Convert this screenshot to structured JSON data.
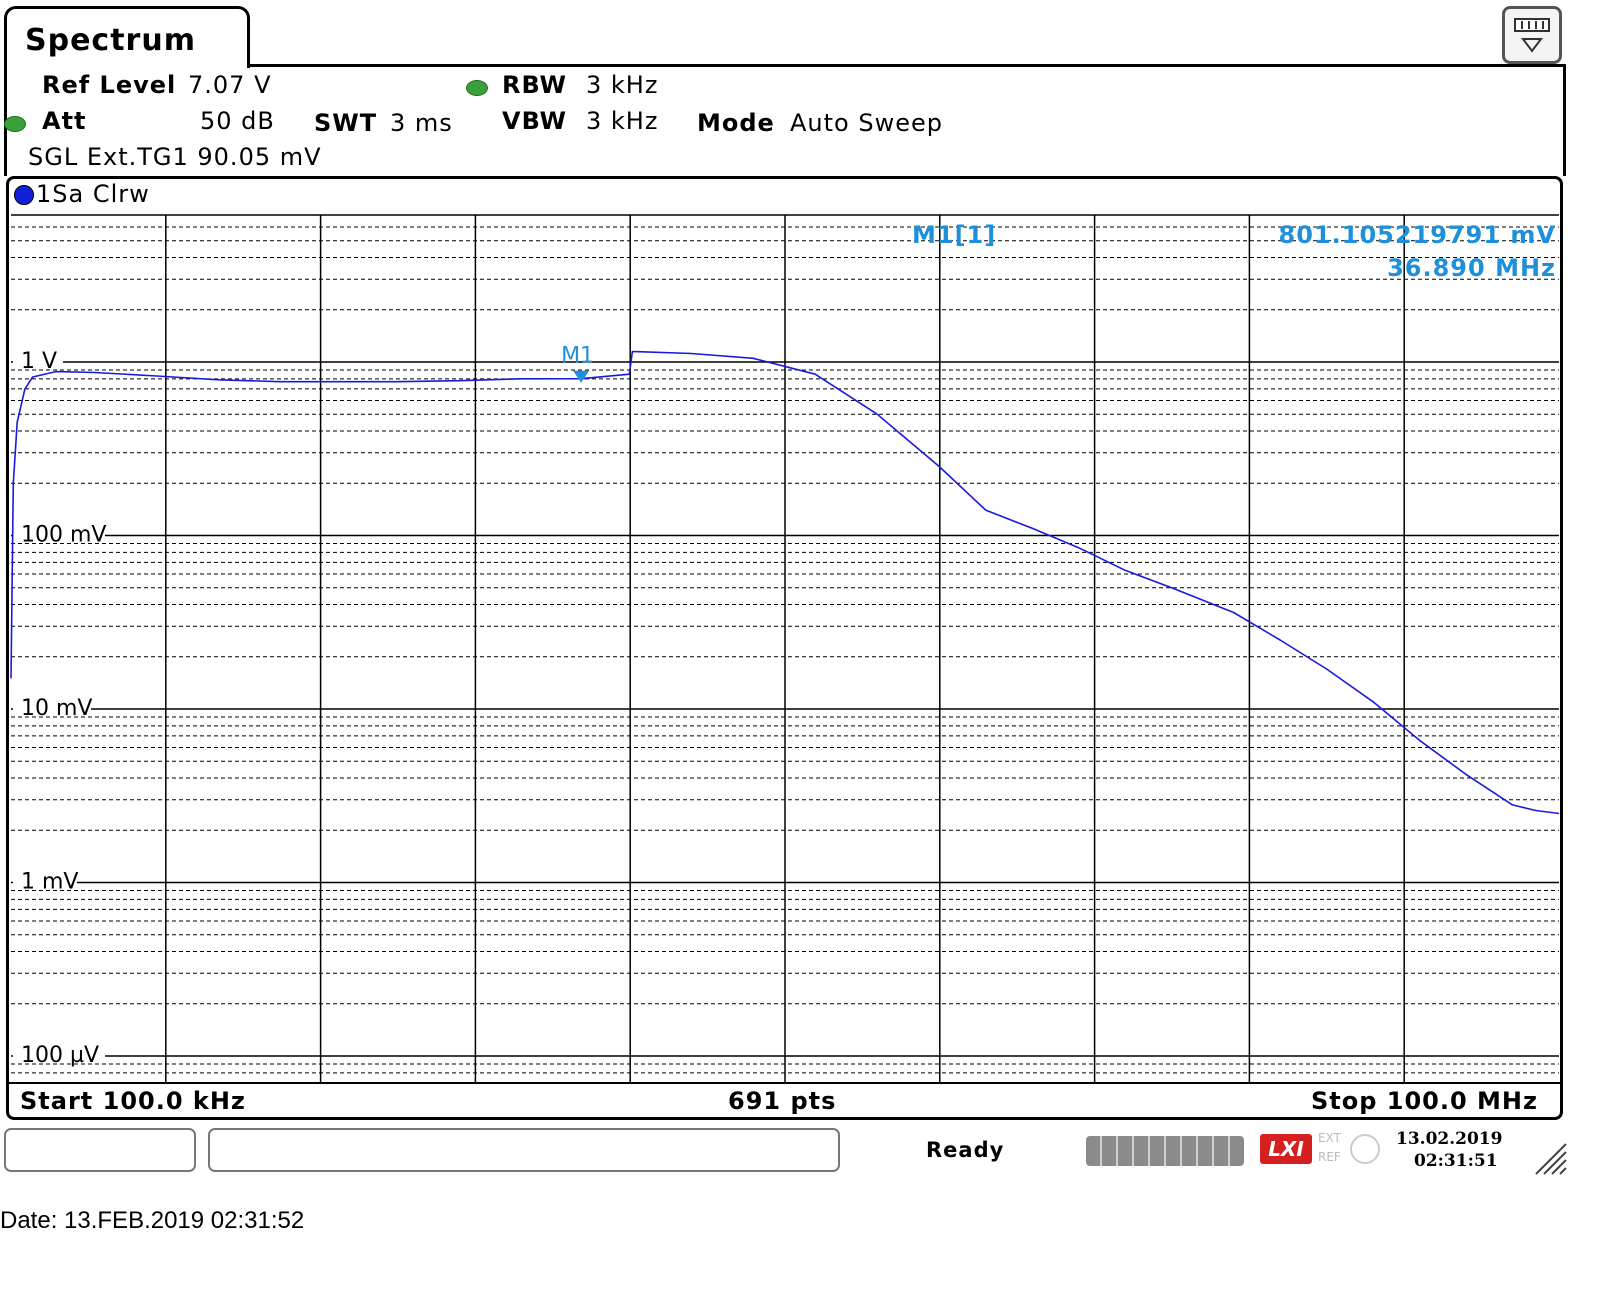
{
  "tab_title": "Spectrum",
  "settings": {
    "ref_level_label": "Ref Level",
    "ref_level_value": "7.07 V",
    "att_label": "Att",
    "att_value": "50 dB",
    "swt_label": "SWT",
    "swt_value": "3 ms",
    "rbw_label": "RBW",
    "rbw_value": "3 kHz",
    "vbw_label": "VBW",
    "vbw_value": "3 kHz",
    "mode_label": "Mode",
    "mode_value": "Auto Sweep",
    "sgl_line": "SGL Ext.TG1 90.05 mV"
  },
  "trace_label": "1Sa Clrw",
  "marker_info": {
    "name": "M1[1]",
    "value": "801.105219791 mV",
    "freq": "36.890 MHz"
  },
  "footer": {
    "start": "Start 100.0 kHz",
    "pts": "691 pts",
    "stop": "Stop 100.0 MHz"
  },
  "status": {
    "ready": "Ready",
    "date": "13.02.2019",
    "time": "02:31:51",
    "lxi": "LXI",
    "ext": "EXT",
    "ref": "REF"
  },
  "caption": "Date: 13.FEB.2019  02:31:52",
  "colors": {
    "trace": "#1a1adc",
    "marker_text": "#1e8fd8",
    "grid": "#000000"
  },
  "chart_data": {
    "type": "line",
    "y_scale": "log",
    "y_unit": "V",
    "ylim": [
      0.0001,
      7.07
    ],
    "yticks": [
      {
        "label": "1 V",
        "value": 1
      },
      {
        "label": "100 mV",
        "value": 0.1
      },
      {
        "label": "10 mV",
        "value": 0.01
      },
      {
        "label": "1 mV",
        "value": 0.001
      },
      {
        "label": "100 µV",
        "value": 0.0001
      }
    ],
    "x_unit": "MHz",
    "xlim": [
      0.1,
      100.0
    ],
    "x_divisions": 10,
    "grid": true,
    "marker": {
      "label": "M1",
      "x": 36.89,
      "y": 0.8011
    },
    "series": [
      {
        "x": [
          0.1,
          0.25,
          0.5,
          1.0,
          1.5,
          3.0,
          5.5,
          9.5,
          13.5,
          17.5,
          21.0,
          25.0,
          29.0,
          33.0,
          36.89,
          40.0,
          40.2,
          44.0,
          48.0,
          52.0,
          56.0,
          60.0,
          63.0,
          66.0,
          69.0,
          72.0,
          75.0,
          79.0,
          82.0,
          85.0,
          88.0,
          91.0,
          94.0,
          97.0,
          98.5,
          100.0
        ],
        "y": [
          0.015,
          0.2,
          0.45,
          0.7,
          0.82,
          0.88,
          0.87,
          0.83,
          0.79,
          0.77,
          0.77,
          0.77,
          0.78,
          0.8,
          0.801,
          0.85,
          1.15,
          1.12,
          1.05,
          0.85,
          0.5,
          0.25,
          0.14,
          0.11,
          0.085,
          0.063,
          0.05,
          0.036,
          0.025,
          0.017,
          0.011,
          0.0066,
          0.0042,
          0.0028,
          0.0026,
          0.0025
        ]
      }
    ]
  }
}
